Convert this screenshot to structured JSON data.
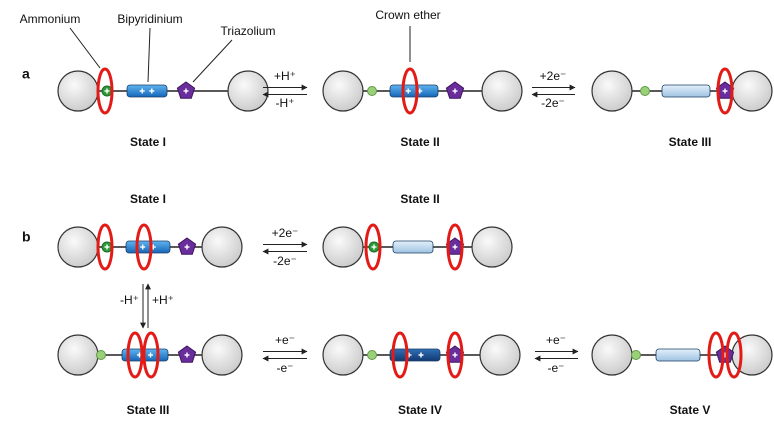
{
  "labels": {
    "ammonium": "Ammonium",
    "bipyridinium": "Bipyridinium",
    "triazolium": "Triazolium",
    "crown_ether": "Crown ether"
  },
  "panel_a": {
    "label": "a",
    "states": [
      "State I",
      "State II",
      "State III"
    ],
    "arrows": [
      {
        "forward": "+H⁺",
        "backward": "-H⁺"
      },
      {
        "forward": "+2e⁻",
        "backward": "-2e⁻"
      }
    ]
  },
  "panel_b": {
    "label": "b",
    "states": [
      "State I",
      "State II",
      "State III",
      "State IV",
      "State V"
    ],
    "arrows": [
      {
        "forward": "+2e⁻",
        "backward": "-2e⁻"
      },
      {
        "forward": "-H⁺",
        "backward": "+H⁺"
      },
      {
        "forward": "+e⁻",
        "backward": "-e⁻"
      },
      {
        "forward": "+e⁻",
        "backward": "-e⁻"
      }
    ]
  }
}
